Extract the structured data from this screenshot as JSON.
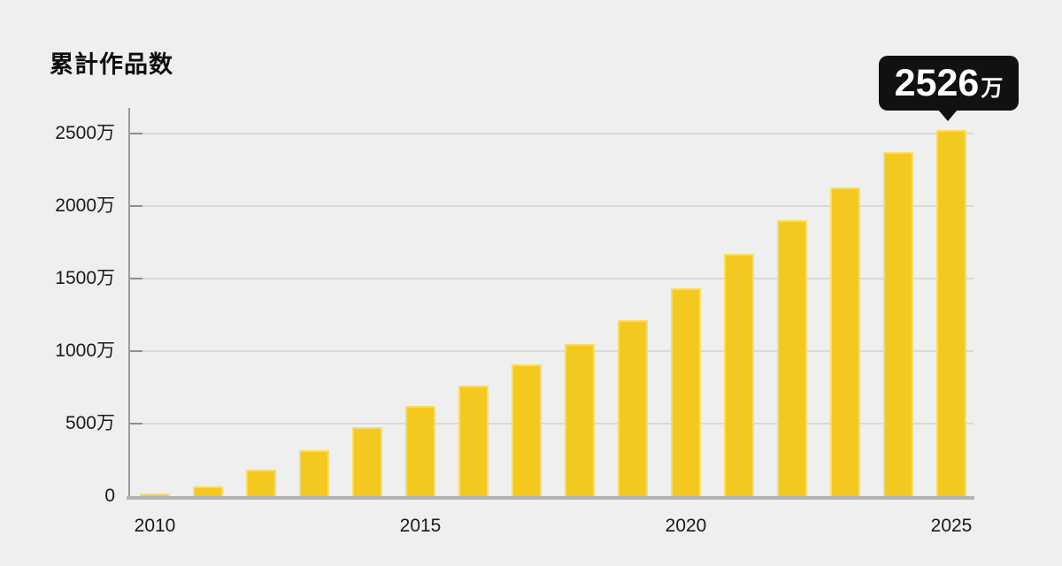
{
  "title": "累計作品数",
  "annotation": {
    "value": "2526",
    "unit": "万"
  },
  "colors": {
    "background": "#EFEFEF",
    "bar": "#F3C91F",
    "callout_bg": "#111111",
    "callout_text": "#FFFFFF",
    "axis": "#9B9B9B",
    "baseline": "#B3B3B6",
    "gridline": "#D9D9D9",
    "tick": "#8E8E8E",
    "label_text": "#1A1A1A"
  },
  "chart_data": {
    "type": "bar",
    "title": "累計作品数",
    "unit_suffix": "万",
    "categories": [
      "2010",
      "2011",
      "2012",
      "2013",
      "2014",
      "2015",
      "2016",
      "2017",
      "2018",
      "2019",
      "2020",
      "2021",
      "2022",
      "2023",
      "2024",
      "2025"
    ],
    "values": [
      18,
      70,
      185,
      315,
      475,
      620,
      765,
      910,
      1050,
      1215,
      1435,
      1670,
      1900,
      2130,
      2370,
      2526
    ],
    "x_tick_labels": [
      "2010",
      "2015",
      "2020",
      "2025"
    ],
    "y_ticks": [
      0,
      500,
      1000,
      1500,
      2000,
      2500
    ],
    "y_tick_labels": [
      "0",
      "500万",
      "1000万",
      "1500万",
      "2000万",
      "2500万"
    ],
    "ylim": [
      0,
      2680
    ],
    "xlabel": "",
    "ylabel": "",
    "grid": "horizontal",
    "legend": "none",
    "bar_color": "#F3C91F",
    "annotation": {
      "text": "2526万",
      "target_category": "2025"
    }
  }
}
